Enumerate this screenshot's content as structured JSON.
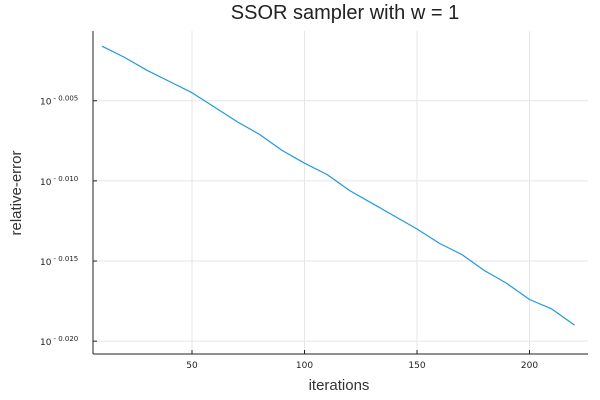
{
  "chart_data": {
    "type": "line",
    "title": "SSOR sampler with w = 1",
    "xlabel": "iterations",
    "ylabel": "relative-error",
    "y_scale": "log10",
    "grid": true,
    "legend": "none",
    "xlim": [
      6,
      226
    ],
    "ylim_log10": [
      -0.0208,
      -0.00065
    ],
    "x_ticks": [
      50,
      100,
      150,
      200
    ],
    "y_ticks": [
      {
        "value": -0.005,
        "base": "10",
        "exponent": "- 0.005"
      },
      {
        "value": -0.01,
        "base": "10",
        "exponent": "- 0.010"
      },
      {
        "value": -0.015,
        "base": "10",
        "exponent": "- 0.015"
      },
      {
        "value": -0.02,
        "base": "10",
        "exponent": "- 0.020"
      }
    ],
    "series": [
      {
        "color": "#1e9ae0",
        "x": [
          10,
          20,
          30,
          40,
          50,
          60,
          70,
          80,
          90,
          100,
          110,
          120,
          130,
          140,
          150,
          160,
          170,
          180,
          190,
          200,
          210,
          220
        ],
        "log10_y": [
          -0.0016,
          -0.0023,
          -0.0031,
          -0.0038,
          -0.0045,
          -0.0054,
          -0.0063,
          -0.0071,
          -0.0081,
          -0.0089,
          -0.0096,
          -0.0106,
          -0.0114,
          -0.0122,
          -0.013,
          -0.0139,
          -0.0146,
          -0.0156,
          -0.0164,
          -0.0174,
          -0.018,
          -0.019
        ]
      }
    ]
  }
}
